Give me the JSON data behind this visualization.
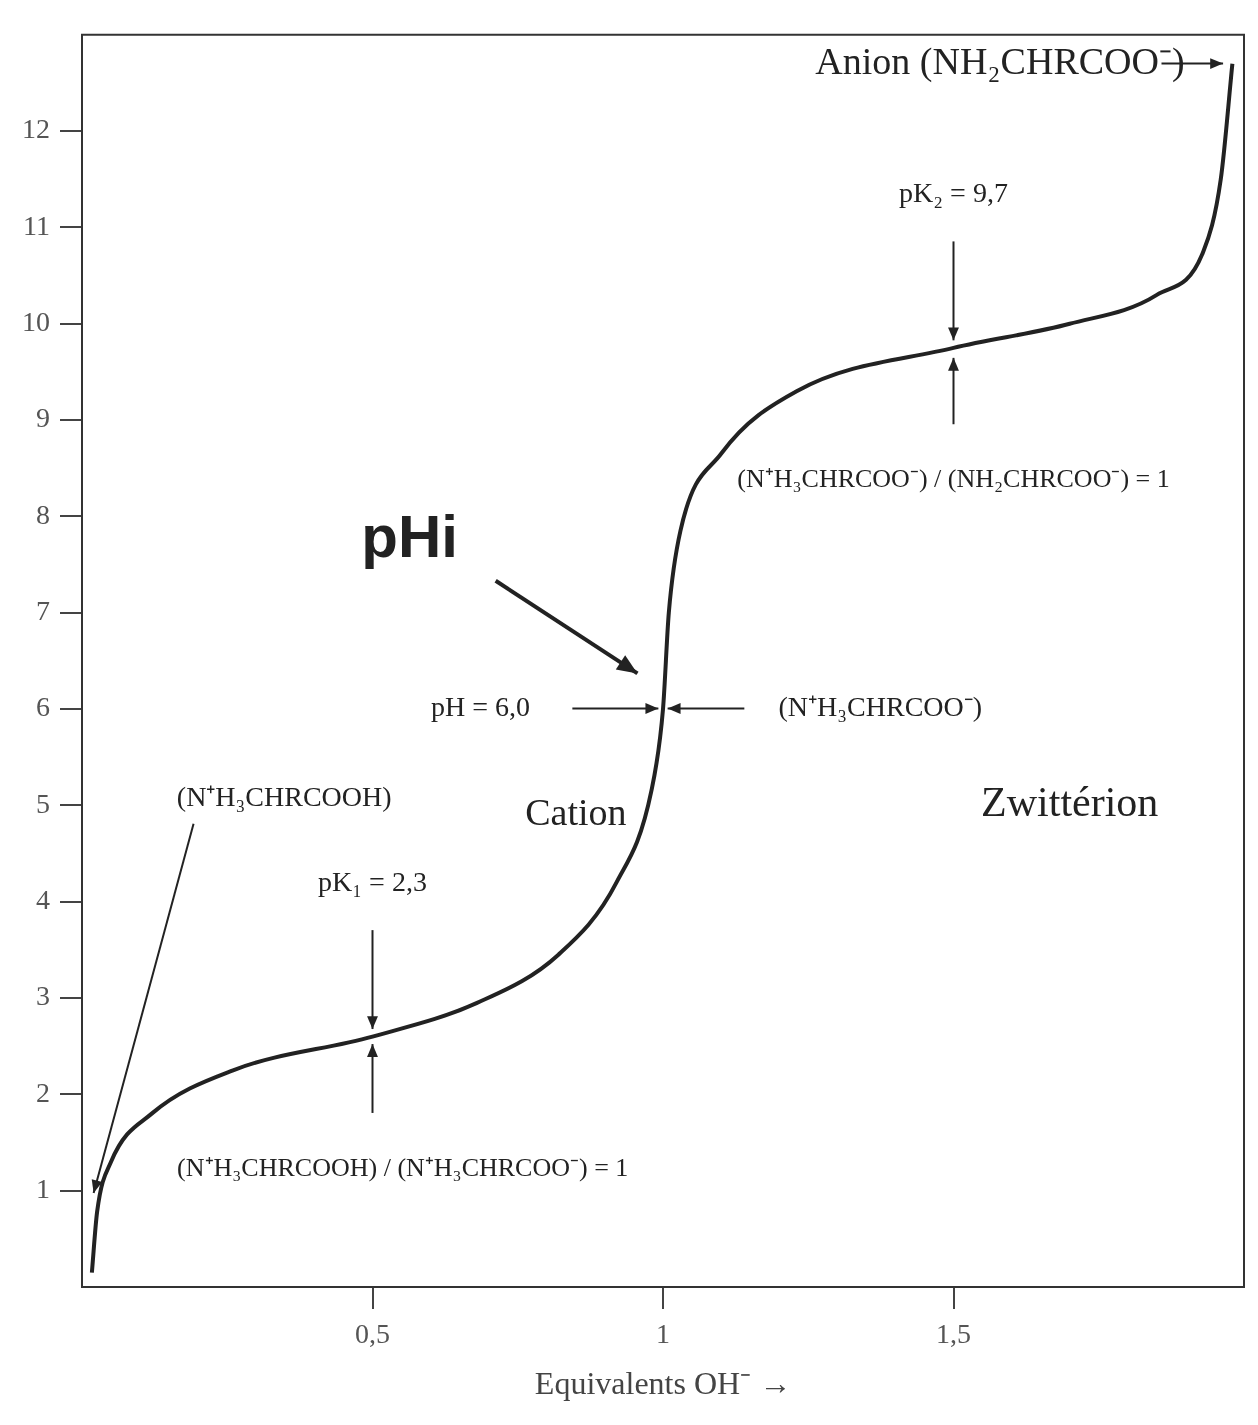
{
  "chart_data": {
    "type": "line",
    "xlabel": "Equivalents OH⁻ →",
    "x": [
      0.017,
      0.026,
      0.05,
      0.12,
      0.26,
      0.5,
      0.68,
      0.82,
      0.92,
      0.98,
      1.0,
      1.01,
      1.03,
      1.1,
      1.23,
      1.5,
      1.7,
      1.85,
      1.93,
      1.96,
      1.98
    ],
    "values": [
      0.15,
      0.78,
      1.3,
      1.8,
      2.25,
      2.6,
      2.95,
      3.45,
      4.2,
      5.15,
      6.0,
      7.0,
      7.85,
      8.65,
      9.3,
      9.75,
      10.0,
      10.3,
      10.75,
      11.5,
      12.7
    ],
    "color": "#222222",
    "xlim": [
      0,
      2
    ],
    "ylim": [
      0,
      13
    ],
    "xticks": [
      {
        "value": 0.5,
        "label": "0,5"
      },
      1,
      {
        "value": 1.5,
        "label": "1,5"
      }
    ],
    "yticks": [
      1,
      2,
      3,
      4,
      5,
      6,
      7,
      8,
      9,
      10,
      11,
      12
    ],
    "annotations": [
      "Anion (NH₂CHRCOO⁻)",
      "pK₂ = 9,7",
      "(N⁺H₃CHRCOO⁻) / (NH₂CHRCOO⁻) = 1",
      "pHi",
      "pH = 6,0",
      "(N⁺H₃CHRCOO⁻)",
      "Cation",
      "Zwittérion",
      "(N⁺H₃CHRCOOH)",
      "pK₁ = 2,3",
      "(N⁺H₃CHRCOOH) / (N⁺H₃CHRCOO⁻) = 1"
    ]
  }
}
